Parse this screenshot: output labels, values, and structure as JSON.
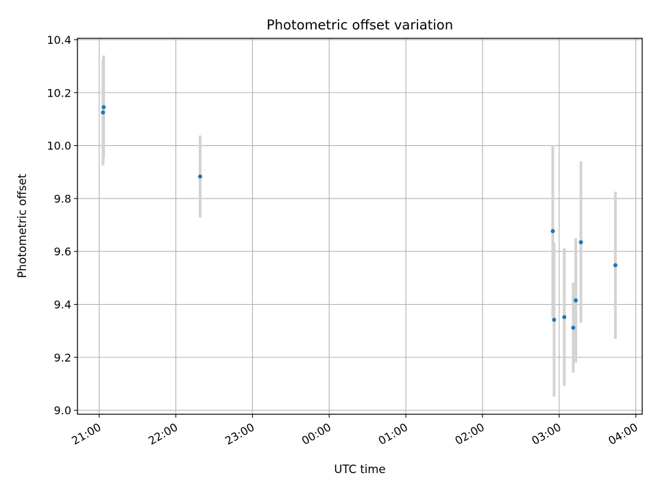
{
  "chart_data": {
    "type": "scatter",
    "title": "Photometric offset variation",
    "xlabel": "UTC time",
    "ylabel": "Photometric offset",
    "xlim": [
      "20:43",
      "04:05"
    ],
    "ylim": [
      8.985,
      10.405
    ],
    "x_ticks": [
      "21:00",
      "22:00",
      "23:00",
      "00:00",
      "01:00",
      "02:00",
      "03:00",
      "04:00"
    ],
    "y_ticks": [
      "9.0",
      "9.2",
      "9.4",
      "9.6",
      "9.8",
      "10.0",
      "10.2",
      "10.4"
    ],
    "grid": true,
    "colors": {
      "point": "#1f77b4",
      "errorbar": "#d3d3d3",
      "grid": "#b0b0b0"
    },
    "series": [
      {
        "points": [
          {
            "x": "21:03:00",
            "y": 10.125,
            "err": 0.2
          },
          {
            "x": "21:03:30",
            "y": 10.145,
            "err": 0.195
          },
          {
            "x": "22:19:00",
            "y": 9.883,
            "err": 0.155
          },
          {
            "x": "02:55:00",
            "y": 9.677,
            "err": 0.325
          },
          {
            "x": "02:56:00",
            "y": 9.342,
            "err": 0.29
          },
          {
            "x": "03:04:00",
            "y": 9.352,
            "err": 0.26
          },
          {
            "x": "03:11:00",
            "y": 9.312,
            "err": 0.17
          },
          {
            "x": "03:13:00",
            "y": 9.415,
            "err": 0.235
          },
          {
            "x": "03:17:00",
            "y": 9.635,
            "err": 0.305
          },
          {
            "x": "03:44:00",
            "y": 9.548,
            "err": 0.278
          }
        ]
      }
    ]
  }
}
